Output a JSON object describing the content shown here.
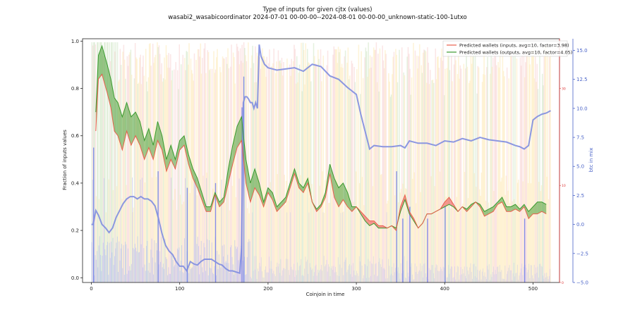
{
  "chart_data": {
    "type": "line",
    "title": "Type of inputs for given cjtx (values)",
    "subtitle": "wasabi2_wasabicoordinator 2024-07-01 00-00-00--2024-08-01 00-00-00_unknown-static-100-1utxo",
    "xlabel": "Coinjoin in time",
    "ylabel": "Fraction of inputs values",
    "y2label": "btc in mix",
    "xlim": [
      -10,
      530
    ],
    "ylim": [
      -0.02,
      1.01
    ],
    "y2lim": [
      -5.0,
      16.0
    ],
    "x_ticks": [
      "0",
      "100",
      "200",
      "300",
      "400",
      "500"
    ],
    "y_ticks": [
      "0.0",
      "0.2",
      "0.4",
      "0.6",
      "0.8",
      "1.0"
    ],
    "y2_ticks": [
      "−5.0",
      "−2.5",
      "0.0",
      "2.5",
      "5.0",
      "7.5",
      "10.0",
      "12.5",
      "15.0"
    ],
    "y3_ticks": [
      "30",
      "10",
      "0"
    ],
    "legend_position": "top-right",
    "grid": false,
    "colors": {
      "inputs": "#e8604c",
      "outputs": "#3a9a2e",
      "btc": "#7f8de0",
      "fill_pos": "#5aa646",
      "fill_neg": "#ef5a5a",
      "bg_green": "#cfe6c5",
      "bg_pink": "#f8d2d2",
      "bg_yellow": "#fde9b8",
      "bg_blue": "#aab2f5",
      "right_axis_red": "#d33",
      "right_axis_blue": "#4a63c8"
    },
    "series": [
      {
        "name": "Predicted wallets (inputs, avg=10, factor=3.98)",
        "x": [
          5,
          8,
          12,
          18,
          22,
          26,
          30,
          35,
          40,
          45,
          50,
          55,
          60,
          65,
          70,
          75,
          80,
          85,
          90,
          95,
          100,
          105,
          110,
          115,
          120,
          125,
          130,
          135,
          140,
          145,
          150,
          155,
          160,
          165,
          170,
          175,
          180,
          185,
          190,
          195,
          200,
          205,
          210,
          215,
          220,
          225,
          230,
          235,
          240,
          245,
          250,
          255,
          260,
          265,
          270,
          275,
          280,
          285,
          290,
          295,
          300,
          305,
          310,
          315,
          320,
          325,
          330,
          335,
          340,
          345,
          350,
          355,
          360,
          365,
          370,
          375,
          380,
          385,
          390,
          395,
          400,
          405,
          410,
          415,
          420,
          425,
          430,
          435,
          440,
          445,
          450,
          455,
          460,
          465,
          470,
          475,
          480,
          485,
          490,
          495,
          500,
          505,
          510,
          515
        ],
        "values": [
          0.62,
          0.84,
          0.86,
          0.78,
          0.72,
          0.62,
          0.6,
          0.54,
          0.62,
          0.56,
          0.6,
          0.56,
          0.5,
          0.55,
          0.5,
          0.58,
          0.54,
          0.45,
          0.5,
          0.46,
          0.54,
          0.56,
          0.48,
          0.42,
          0.38,
          0.33,
          0.28,
          0.28,
          0.35,
          0.3,
          0.32,
          0.4,
          0.48,
          0.55,
          0.58,
          0.4,
          0.32,
          0.38,
          0.35,
          0.3,
          0.36,
          0.33,
          0.28,
          0.3,
          0.32,
          0.38,
          0.44,
          0.38,
          0.36,
          0.4,
          0.32,
          0.28,
          0.3,
          0.34,
          0.44,
          0.34,
          0.3,
          0.33,
          0.3,
          0.28,
          0.3,
          0.28,
          0.26,
          0.24,
          0.24,
          0.22,
          0.22,
          0.21,
          0.22,
          0.2,
          0.3,
          0.35,
          0.28,
          0.25,
          0.21,
          0.23,
          0.27,
          0.27,
          0.28,
          0.29,
          0.32,
          0.34,
          0.31,
          0.28,
          0.3,
          0.28,
          0.3,
          0.32,
          0.3,
          0.26,
          0.27,
          0.28,
          0.31,
          0.32,
          0.28,
          0.28,
          0.29,
          0.28,
          0.3,
          0.25,
          0.27,
          0.27,
          0.28,
          0.27
        ]
      },
      {
        "name": "Predicted wallets (outputs, avg=10, factor=4.05)",
        "x": [
          5,
          8,
          12,
          18,
          22,
          26,
          30,
          35,
          40,
          45,
          50,
          55,
          60,
          65,
          70,
          75,
          80,
          85,
          90,
          95,
          100,
          105,
          110,
          115,
          120,
          125,
          130,
          135,
          140,
          145,
          150,
          155,
          160,
          165,
          170,
          175,
          180,
          185,
          190,
          195,
          200,
          205,
          210,
          215,
          220,
          225,
          230,
          235,
          240,
          245,
          250,
          255,
          260,
          265,
          270,
          275,
          280,
          285,
          290,
          295,
          300,
          305,
          310,
          315,
          320,
          325,
          330,
          335,
          340,
          345,
          350,
          355,
          360,
          365,
          370,
          375,
          380,
          385,
          390,
          395,
          400,
          405,
          410,
          415,
          420,
          425,
          430,
          435,
          440,
          445,
          450,
          455,
          460,
          465,
          470,
          475,
          480,
          485,
          490,
          495,
          500,
          505,
          510,
          515
        ],
        "values": [
          0.7,
          0.94,
          0.98,
          0.9,
          0.84,
          0.76,
          0.74,
          0.68,
          0.74,
          0.68,
          0.7,
          0.66,
          0.58,
          0.63,
          0.56,
          0.66,
          0.6,
          0.5,
          0.56,
          0.5,
          0.58,
          0.6,
          0.52,
          0.46,
          0.42,
          0.36,
          0.3,
          0.3,
          0.36,
          0.32,
          0.34,
          0.46,
          0.56,
          0.64,
          0.68,
          0.5,
          0.4,
          0.46,
          0.4,
          0.32,
          0.38,
          0.36,
          0.3,
          0.32,
          0.34,
          0.4,
          0.46,
          0.4,
          0.38,
          0.42,
          0.32,
          0.29,
          0.31,
          0.36,
          0.48,
          0.42,
          0.38,
          0.4,
          0.36,
          0.3,
          0.3,
          0.27,
          0.24,
          0.22,
          0.23,
          0.21,
          0.21,
          0.21,
          0.22,
          0.21,
          0.28,
          0.33,
          0.27,
          0.24,
          0.21,
          0.23,
          0.27,
          0.27,
          0.28,
          0.29,
          0.3,
          0.31,
          0.3,
          0.28,
          0.3,
          0.29,
          0.31,
          0.32,
          0.31,
          0.28,
          0.29,
          0.3,
          0.32,
          0.34,
          0.3,
          0.3,
          0.31,
          0.29,
          0.31,
          0.28,
          0.3,
          0.32,
          0.32,
          0.31
        ]
      },
      {
        "name": "btc in mix",
        "axis": "right",
        "x": [
          0,
          2,
          5,
          8,
          12,
          16,
          20,
          24,
          28,
          32,
          36,
          40,
          44,
          48,
          52,
          56,
          60,
          64,
          68,
          72,
          76,
          80,
          84,
          88,
          92,
          96,
          100,
          104,
          108,
          112,
          116,
          120,
          124,
          128,
          132,
          136,
          140,
          144,
          148,
          152,
          156,
          160,
          164,
          168,
          170,
          172,
          174,
          176,
          178,
          180,
          182,
          184,
          186,
          188,
          190,
          192,
          196,
          200,
          210,
          220,
          230,
          240,
          250,
          260,
          270,
          280,
          290,
          300,
          305,
          310,
          315,
          320,
          330,
          340,
          350,
          355,
          360,
          370,
          380,
          390,
          400,
          410,
          420,
          430,
          440,
          450,
          460,
          470,
          480,
          485,
          490,
          495,
          500,
          505,
          510,
          515,
          520
        ],
        "values": [
          0.0,
          0.0,
          1.2,
          0.8,
          0.0,
          -0.3,
          -0.7,
          -0.3,
          0.6,
          1.2,
          1.8,
          2.2,
          2.4,
          2.4,
          2.2,
          2.4,
          2.2,
          2.2,
          2.0,
          1.6,
          0.5,
          -0.8,
          -1.8,
          -2.3,
          -2.6,
          -3.2,
          -3.6,
          -3.6,
          -4.0,
          -3.2,
          -3.4,
          -3.5,
          -3.2,
          -3.0,
          -3.0,
          -3.0,
          -3.2,
          -3.4,
          -3.5,
          -3.8,
          -4.0,
          -4.0,
          -4.1,
          -4.2,
          -2.0,
          10.5,
          11.0,
          11.0,
          10.8,
          10.5,
          10.5,
          10.0,
          10.5,
          10.0,
          15.5,
          14.5,
          13.8,
          13.5,
          13.3,
          13.4,
          13.5,
          13.2,
          13.8,
          13.6,
          12.8,
          12.5,
          11.8,
          11.2,
          9.5,
          8.0,
          6.5,
          6.8,
          6.7,
          6.7,
          6.8,
          6.6,
          7.2,
          7.0,
          7.0,
          6.8,
          7.2,
          7.1,
          7.4,
          7.2,
          7.5,
          7.3,
          7.2,
          7.1,
          6.8,
          6.7,
          6.5,
          6.8,
          9.0,
          9.3,
          9.5,
          9.6,
          9.8
        ]
      }
    ]
  }
}
